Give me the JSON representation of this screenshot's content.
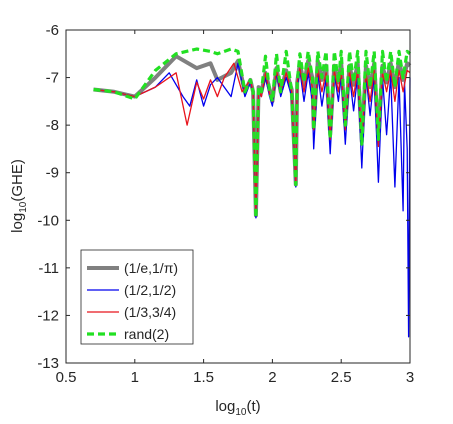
{
  "chart_data": {
    "type": "line",
    "xlabel_base": "log",
    "xlabel_sub": "10",
    "xlabel_arg": "(t)",
    "ylabel_base": "log",
    "ylabel_sub": "10",
    "ylabel_arg": "(GHE)",
    "xlim": [
      0.5,
      3
    ],
    "ylim": [
      -13,
      -6
    ],
    "xticks": [
      0.5,
      1,
      1.5,
      2,
      2.5,
      3
    ],
    "xtick_labels": [
      "0.5",
      "1",
      "1.5",
      "2",
      "2.5",
      "3"
    ],
    "yticks": [
      -13,
      -12,
      -11,
      -10,
      -9,
      -8,
      -7,
      -6
    ],
    "ytick_labels": [
      "-13",
      "-12",
      "-11",
      "-10",
      "-9",
      "-8",
      "-7",
      "-6"
    ],
    "grid": false,
    "legend_position": "bottom-left",
    "series": [
      {
        "name": "(1/e,1/π)",
        "color": "#808080",
        "style": "solid-thick",
        "x": [
          0.7,
          0.85,
          1.0,
          1.15,
          1.3,
          1.45,
          1.55,
          1.6,
          1.7,
          1.75,
          1.8,
          1.84,
          1.86,
          1.88,
          1.9,
          1.92,
          1.95,
          1.98,
          2.0,
          2.03,
          2.06,
          2.1,
          2.14,
          2.17,
          2.18,
          2.2,
          2.23,
          2.26,
          2.29,
          2.3,
          2.33,
          2.36,
          2.39,
          2.42,
          2.45,
          2.48,
          2.5,
          2.53,
          2.56,
          2.59,
          2.62,
          2.65,
          2.68,
          2.71,
          2.74,
          2.77,
          2.8,
          2.83,
          2.86,
          2.89,
          2.92,
          2.95,
          2.98,
          3.0
        ],
        "y": [
          -7.25,
          -7.3,
          -7.4,
          -7.0,
          -6.55,
          -6.8,
          -6.7,
          -7.05,
          -6.9,
          -6.65,
          -7.3,
          -7.05,
          -7.3,
          -9.9,
          -7.2,
          -7.3,
          -6.9,
          -7.25,
          -7.5,
          -6.8,
          -7.3,
          -6.85,
          -7.25,
          -9.25,
          -7.1,
          -6.7,
          -7.15,
          -6.65,
          -7.0,
          -8.05,
          -6.65,
          -7.05,
          -6.75,
          -8.2,
          -6.75,
          -7.1,
          -6.7,
          -8.0,
          -6.75,
          -7.15,
          -6.7,
          -8.35,
          -6.75,
          -7.2,
          -6.7,
          -8.3,
          -6.75,
          -7.1,
          -6.7,
          -7.2,
          -6.65,
          -7.05,
          -6.7,
          -6.75
        ]
      },
      {
        "name": "(1/2,1/2)",
        "color": "#0000ee",
        "style": "solid",
        "x": [
          0.7,
          0.85,
          1.0,
          1.15,
          1.25,
          1.35,
          1.4,
          1.45,
          1.5,
          1.55,
          1.6,
          1.7,
          1.75,
          1.8,
          1.84,
          1.86,
          1.88,
          1.9,
          1.92,
          1.95,
          1.98,
          2.0,
          2.03,
          2.06,
          2.1,
          2.14,
          2.17,
          2.18,
          2.2,
          2.23,
          2.26,
          2.29,
          2.3,
          2.33,
          2.36,
          2.39,
          2.42,
          2.45,
          2.48,
          2.5,
          2.53,
          2.56,
          2.59,
          2.62,
          2.65,
          2.68,
          2.71,
          2.74,
          2.77,
          2.8,
          2.83,
          2.86,
          2.89,
          2.92,
          2.95,
          2.96,
          2.98,
          2.99,
          3.0
        ],
        "y": [
          -7.25,
          -7.3,
          -7.4,
          -7.2,
          -6.9,
          -7.4,
          -7.6,
          -7.05,
          -7.6,
          -7.15,
          -7.0,
          -7.4,
          -6.7,
          -7.4,
          -7.1,
          -7.35,
          -9.95,
          -7.3,
          -7.4,
          -7.0,
          -7.4,
          -7.6,
          -6.9,
          -7.4,
          -7.0,
          -7.4,
          -9.3,
          -7.2,
          -6.85,
          -7.5,
          -6.9,
          -7.5,
          -8.5,
          -6.9,
          -7.6,
          -7.0,
          -8.6,
          -6.9,
          -7.5,
          -6.95,
          -8.4,
          -6.95,
          -7.7,
          -6.95,
          -8.9,
          -6.95,
          -7.8,
          -6.95,
          -9.2,
          -7.0,
          -8.2,
          -6.95,
          -9.3,
          -7.0,
          -9.8,
          -7.1,
          -8.5,
          -12.45,
          -7.0
        ]
      },
      {
        "name": "(1/3,3/4)",
        "color": "#e8141c",
        "style": "solid",
        "x": [
          0.7,
          0.85,
          1.0,
          1.15,
          1.3,
          1.38,
          1.45,
          1.5,
          1.55,
          1.6,
          1.65,
          1.72,
          1.78,
          1.84,
          1.86,
          1.88,
          1.9,
          1.92,
          1.95,
          1.98,
          2.0,
          2.03,
          2.06,
          2.1,
          2.14,
          2.17,
          2.18,
          2.2,
          2.23,
          2.26,
          2.29,
          2.3,
          2.33,
          2.36,
          2.39,
          2.42,
          2.45,
          2.48,
          2.5,
          2.53,
          2.56,
          2.59,
          2.62,
          2.65,
          2.68,
          2.71,
          2.74,
          2.77,
          2.8,
          2.83,
          2.86,
          2.89,
          2.92,
          2.95,
          2.98,
          3.0
        ],
        "y": [
          -7.25,
          -7.3,
          -7.4,
          -7.2,
          -6.9,
          -8.0,
          -7.1,
          -7.45,
          -7.05,
          -7.4,
          -7.0,
          -6.7,
          -7.3,
          -7.05,
          -7.3,
          -9.9,
          -7.25,
          -7.4,
          -6.9,
          -7.35,
          -7.5,
          -6.85,
          -7.3,
          -6.9,
          -7.3,
          -9.25,
          -7.1,
          -6.8,
          -7.3,
          -6.8,
          -7.2,
          -8.1,
          -6.8,
          -7.3,
          -6.9,
          -8.3,
          -6.85,
          -7.3,
          -6.85,
          -8.1,
          -6.85,
          -7.4,
          -6.85,
          -8.4,
          -6.9,
          -7.5,
          -6.85,
          -8.45,
          -6.9,
          -7.3,
          -6.85,
          -7.5,
          -6.85,
          -7.3,
          -6.85,
          -6.9
        ]
      },
      {
        "name": "rand(2)",
        "color": "#22e022",
        "style": "dashed",
        "x": [
          0.7,
          0.85,
          1.0,
          1.15,
          1.3,
          1.45,
          1.55,
          1.6,
          1.7,
          1.75,
          1.8,
          1.84,
          1.86,
          1.88,
          1.9,
          1.92,
          1.95,
          1.98,
          2.0,
          2.03,
          2.06,
          2.1,
          2.14,
          2.17,
          2.18,
          2.2,
          2.23,
          2.26,
          2.29,
          2.3,
          2.33,
          2.36,
          2.39,
          2.42,
          2.45,
          2.48,
          2.5,
          2.53,
          2.56,
          2.59,
          2.62,
          2.65,
          2.68,
          2.71,
          2.74,
          2.77,
          2.8,
          2.83,
          2.86,
          2.89,
          2.92,
          2.95,
          2.98,
          3.0
        ],
        "y": [
          -7.25,
          -7.3,
          -7.45,
          -6.85,
          -6.5,
          -6.4,
          -6.45,
          -6.5,
          -6.4,
          -6.45,
          -7.3,
          -7.05,
          -7.3,
          -9.95,
          -7.2,
          -7.3,
          -6.55,
          -7.3,
          -7.5,
          -6.5,
          -7.3,
          -6.45,
          -7.3,
          -9.25,
          -7.1,
          -6.5,
          -7.1,
          -6.45,
          -7.0,
          -8.1,
          -6.45,
          -7.0,
          -6.45,
          -8.3,
          -6.45,
          -7.1,
          -6.45,
          -8.0,
          -6.45,
          -7.1,
          -6.45,
          -8.4,
          -6.45,
          -7.2,
          -6.45,
          -8.3,
          -6.45,
          -7.1,
          -6.45,
          -7.2,
          -6.45,
          -7.0,
          -6.45,
          -6.5
        ]
      }
    ]
  }
}
